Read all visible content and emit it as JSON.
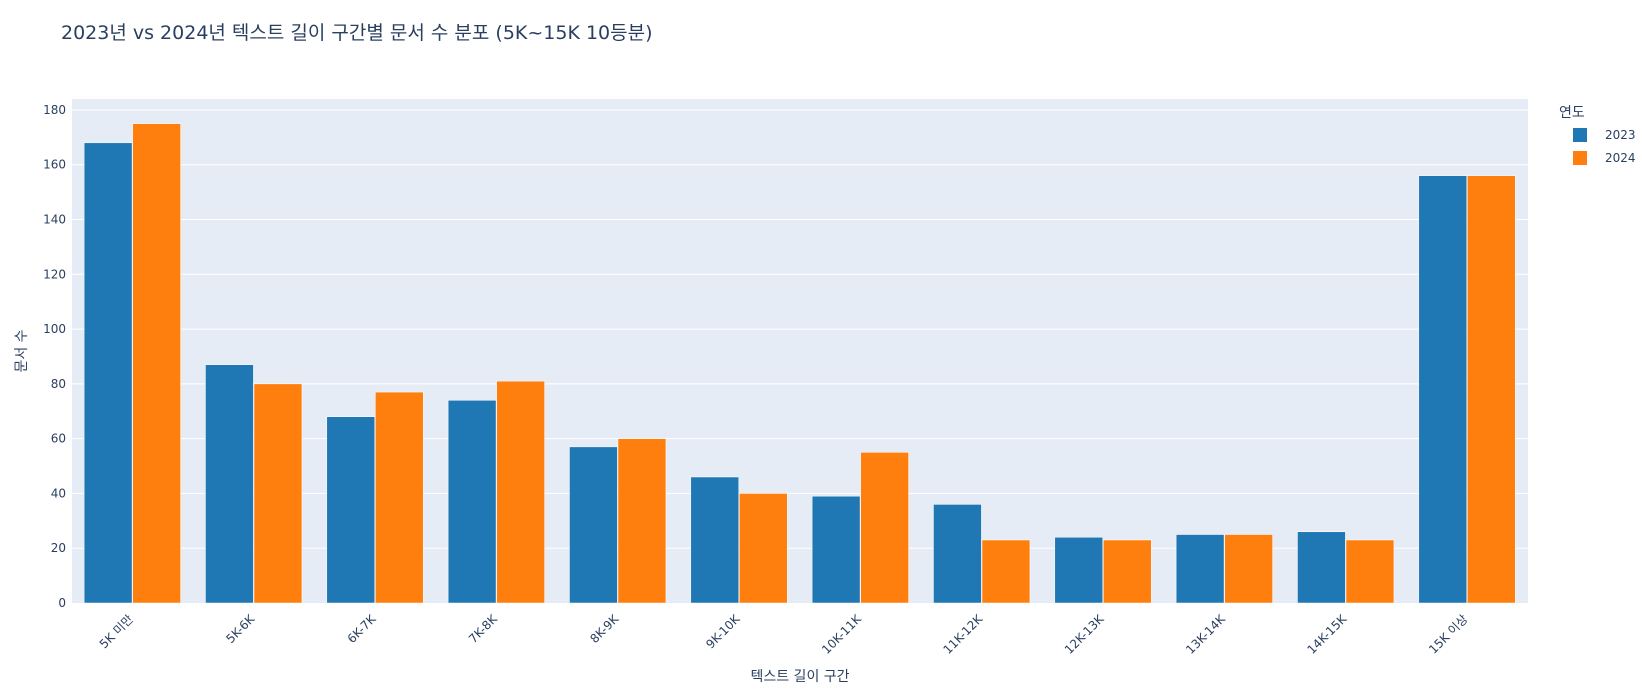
{
  "chart_data": {
    "type": "bar",
    "title": "2023년 vs 2024년 텍스트 길이 구간별 문서 수 분포 (5K~15K 10등분)",
    "xlabel": "텍스트 길이 구간",
    "ylabel": "문서 수",
    "categories": [
      "5K 미만",
      "5K-6K",
      "6K-7K",
      "7K-8K",
      "8K-9K",
      "9K-10K",
      "10K-11K",
      "11K-12K",
      "12K-13K",
      "13K-14K",
      "14K-15K",
      "15K 이상"
    ],
    "series": [
      {
        "name": "2023",
        "color": "#1f77b4",
        "values": [
          168,
          87,
          68,
          74,
          57,
          46,
          39,
          36,
          24,
          25,
          26,
          156
        ]
      },
      {
        "name": "2024",
        "color": "#ff7f0e",
        "values": [
          175,
          80,
          77,
          81,
          60,
          40,
          55,
          23,
          23,
          25,
          23,
          156
        ]
      }
    ],
    "ylim": [
      0,
      184
    ],
    "yticks": [
      0,
      20,
      40,
      60,
      80,
      100,
      120,
      140,
      160,
      180
    ],
    "grid": true,
    "legend": {
      "title": "연도",
      "position": "top-right"
    },
    "plot_bg": "#e5ecf6"
  }
}
